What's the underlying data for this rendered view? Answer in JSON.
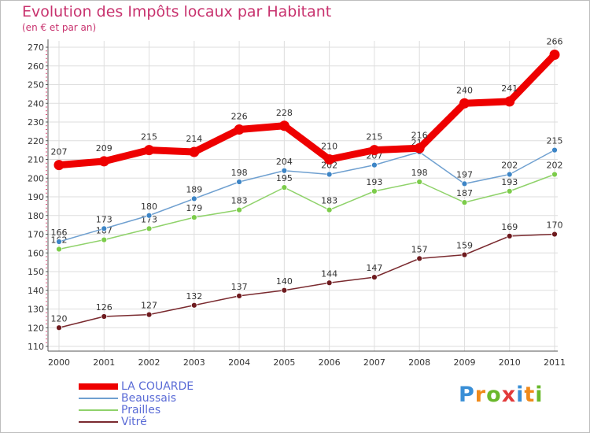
{
  "header": {
    "title": "Evolution des Impôts locaux par Habitant",
    "subtitle": "(en € et par an)"
  },
  "legend": {
    "items": [
      {
        "label": "LA COUARDE",
        "color": "#ee0000"
      },
      {
        "label": "Beaussais",
        "color": "#6fa0d0"
      },
      {
        "label": "Prailles",
        "color": "#8fd26a"
      },
      {
        "label": "Vitré",
        "color": "#7a2a2f"
      }
    ]
  },
  "logo": {
    "text": "Proxiti",
    "letters": [
      "P",
      "r",
      "o",
      "x",
      "i",
      "t",
      "i"
    ],
    "colors": [
      "#3a8fd6",
      "#f08a1a",
      "#6ab82c",
      "#e23a3a",
      "#3a8fd6",
      "#f08a1a",
      "#6ab82c"
    ]
  },
  "chart_data": {
    "type": "line",
    "title": "Evolution des Impôts locaux par Habitant",
    "subtitle": "(en € et par an)",
    "xlabel": "",
    "ylabel": "",
    "ylim": [
      110,
      270
    ],
    "yticks": [
      110,
      120,
      130,
      140,
      150,
      160,
      170,
      180,
      190,
      200,
      210,
      220,
      230,
      240,
      250,
      260,
      270
    ],
    "grid": true,
    "legend_position": "bottom-left",
    "categories": [
      "2000",
      "2001",
      "2002",
      "2003",
      "2004",
      "2005",
      "2006",
      "2007",
      "2008",
      "2009",
      "2010",
      "2011"
    ],
    "series": [
      {
        "name": "LA COUARDE",
        "color": "#ee0000",
        "values": [
          207,
          209,
          215,
          214,
          226,
          228,
          210,
          215,
          216,
          240,
          241,
          266
        ]
      },
      {
        "name": "Beaussais",
        "color": "#6fa0d0",
        "marker": "#3d85c6",
        "values": [
          166,
          173,
          180,
          189,
          198,
          204,
          202,
          207,
          214,
          197,
          202,
          215
        ]
      },
      {
        "name": "Prailles",
        "color": "#8fd26a",
        "marker": "#7ccc4a",
        "values": [
          162,
          167,
          173,
          179,
          183,
          195,
          183,
          193,
          198,
          187,
          193,
          202
        ]
      },
      {
        "name": "Vitré",
        "color": "#7a2a2f",
        "marker": "#6e1a1e",
        "values": [
          120,
          126,
          127,
          132,
          137,
          140,
          144,
          147,
          157,
          159,
          169,
          170
        ]
      }
    ]
  }
}
